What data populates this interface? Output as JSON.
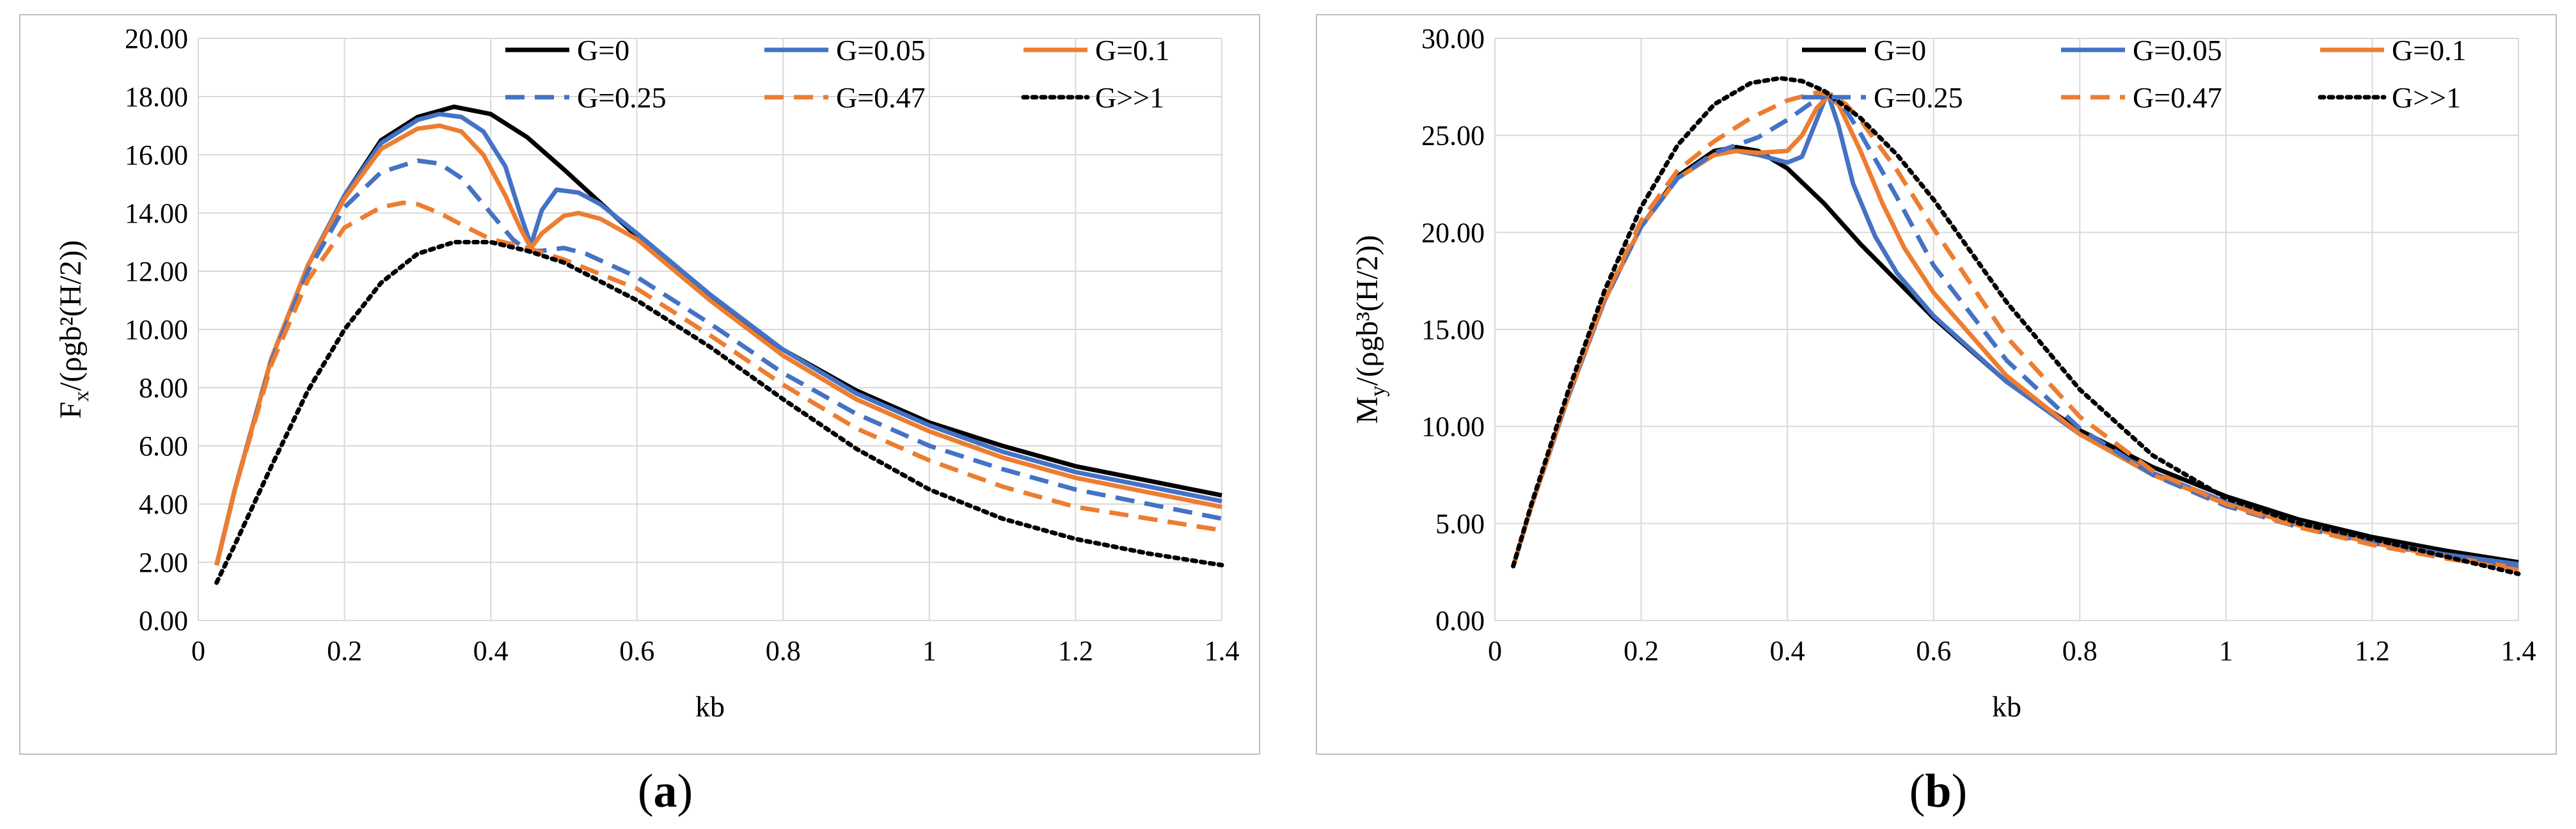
{
  "chart_data": [
    {
      "type": "line",
      "panel_label": "a",
      "xlabel": "kb",
      "ylabel_main": "F",
      "ylabel_sub": "x",
      "ylabel_rest": "/(ρgb²(H/2))",
      "xlim": [
        0,
        1.4
      ],
      "ylim": [
        0,
        20
      ],
      "xticks": [
        0,
        0.2,
        0.4,
        0.6,
        0.8,
        1,
        1.2,
        1.4
      ],
      "xtick_labels": [
        "0",
        "0.2",
        "0.4",
        "0.6",
        "0.8",
        "1",
        "1.2",
        "1.4"
      ],
      "yticks": [
        0,
        2,
        4,
        6,
        8,
        10,
        12,
        14,
        16,
        18,
        20
      ],
      "ytick_labels": [
        "0.00",
        "2.00",
        "4.00",
        "6.00",
        "8.00",
        "10.00",
        "12.00",
        "14.00",
        "16.00",
        "18.00",
        "20.00"
      ],
      "grid": true,
      "legend_position": "top-right",
      "series": [
        {
          "name": "G=0",
          "color": "#000000",
          "style": "solid",
          "x": [
            0.025,
            0.05,
            0.1,
            0.15,
            0.2,
            0.25,
            0.3,
            0.35,
            0.4,
            0.45,
            0.5,
            0.6,
            0.7,
            0.8,
            0.9,
            1.0,
            1.1,
            1.2,
            1.3,
            1.4
          ],
          "y": [
            1.9,
            4.5,
            9.0,
            12.2,
            14.6,
            16.5,
            17.3,
            17.65,
            17.4,
            16.6,
            15.5,
            13.2,
            11.1,
            9.3,
            7.9,
            6.8,
            6.0,
            5.3,
            4.8,
            4.3
          ]
        },
        {
          "name": "G=0.05",
          "color": "#4472C4",
          "style": "solid",
          "x": [
            0.025,
            0.05,
            0.1,
            0.15,
            0.2,
            0.25,
            0.3,
            0.33,
            0.36,
            0.39,
            0.42,
            0.44,
            0.455,
            0.47,
            0.49,
            0.52,
            0.55,
            0.6,
            0.7,
            0.8,
            0.9,
            1.0,
            1.1,
            1.2,
            1.3,
            1.4
          ],
          "y": [
            1.9,
            4.5,
            9.0,
            12.2,
            14.6,
            16.4,
            17.2,
            17.4,
            17.3,
            16.8,
            15.6,
            14.0,
            12.9,
            14.1,
            14.8,
            14.7,
            14.3,
            13.3,
            11.2,
            9.3,
            7.8,
            6.7,
            5.8,
            5.1,
            4.6,
            4.1
          ]
        },
        {
          "name": "G=0.1",
          "color": "#ED7D31",
          "style": "solid",
          "x": [
            0.025,
            0.05,
            0.1,
            0.15,
            0.2,
            0.25,
            0.3,
            0.33,
            0.36,
            0.39,
            0.42,
            0.44,
            0.455,
            0.47,
            0.5,
            0.52,
            0.55,
            0.6,
            0.7,
            0.8,
            0.9,
            1.0,
            1.1,
            1.2,
            1.3,
            1.4
          ],
          "y": [
            1.9,
            4.5,
            9.0,
            12.2,
            14.5,
            16.2,
            16.9,
            17.0,
            16.8,
            16.0,
            14.6,
            13.5,
            12.8,
            13.3,
            13.9,
            14.0,
            13.8,
            13.1,
            11.0,
            9.1,
            7.6,
            6.5,
            5.6,
            4.9,
            4.4,
            3.9
          ]
        },
        {
          "name": "G=0.25",
          "color": "#4472C4",
          "style": "dashed",
          "x": [
            0.025,
            0.05,
            0.1,
            0.15,
            0.2,
            0.25,
            0.3,
            0.33,
            0.36,
            0.4,
            0.43,
            0.45,
            0.47,
            0.5,
            0.53,
            0.6,
            0.7,
            0.8,
            0.9,
            1.0,
            1.1,
            1.2,
            1.3,
            1.4
          ],
          "y": [
            1.9,
            4.5,
            8.9,
            12.0,
            14.2,
            15.4,
            15.8,
            15.7,
            15.2,
            14.0,
            13.1,
            12.7,
            12.7,
            12.8,
            12.6,
            11.8,
            10.2,
            8.5,
            7.1,
            6.0,
            5.2,
            4.5,
            4.0,
            3.5
          ]
        },
        {
          "name": "G=0.47",
          "color": "#ED7D31",
          "style": "dashed",
          "x": [
            0.025,
            0.05,
            0.1,
            0.15,
            0.2,
            0.25,
            0.28,
            0.3,
            0.33,
            0.36,
            0.4,
            0.45,
            0.5,
            0.6,
            0.7,
            0.8,
            0.9,
            1.0,
            1.1,
            1.2,
            1.3,
            1.4
          ],
          "y": [
            1.9,
            4.5,
            8.8,
            11.7,
            13.5,
            14.2,
            14.35,
            14.3,
            14.0,
            13.6,
            13.1,
            12.8,
            12.4,
            11.4,
            9.8,
            8.1,
            6.6,
            5.5,
            4.6,
            3.9,
            3.5,
            3.1
          ]
        },
        {
          "name": "G>>1",
          "color": "#000000",
          "style": "dotted",
          "x": [
            0.025,
            0.05,
            0.1,
            0.15,
            0.2,
            0.25,
            0.3,
            0.35,
            0.4,
            0.45,
            0.5,
            0.6,
            0.7,
            0.8,
            0.9,
            1.0,
            1.1,
            1.2,
            1.3,
            1.4
          ],
          "y": [
            1.3,
            2.6,
            5.3,
            7.9,
            10.0,
            11.6,
            12.6,
            13.0,
            13.0,
            12.7,
            12.3,
            11.0,
            9.4,
            7.6,
            5.9,
            4.5,
            3.5,
            2.8,
            2.3,
            1.9
          ]
        }
      ]
    },
    {
      "type": "line",
      "panel_label": "b",
      "xlabel": "kb",
      "ylabel_main": "M",
      "ylabel_sub": "y",
      "ylabel_rest": "/(ρgb³(H/2))",
      "xlim": [
        0,
        1.4
      ],
      "ylim": [
        0,
        30
      ],
      "xticks": [
        0,
        0.2,
        0.4,
        0.6,
        0.8,
        1,
        1.2,
        1.4
      ],
      "xtick_labels": [
        "0",
        "0.2",
        "0.4",
        "0.6",
        "0.8",
        "1",
        "1.2",
        "1.4"
      ],
      "yticks": [
        0,
        5,
        10,
        15,
        20,
        25,
        30
      ],
      "ytick_labels": [
        "0.00",
        "5.00",
        "10.00",
        "15.00",
        "20.00",
        "25.00",
        "30.00"
      ],
      "grid": true,
      "legend_position": "top-right",
      "series": [
        {
          "name": "G=0",
          "color": "#000000",
          "style": "solid",
          "x": [
            0.025,
            0.05,
            0.1,
            0.15,
            0.2,
            0.25,
            0.3,
            0.33,
            0.36,
            0.4,
            0.45,
            0.5,
            0.6,
            0.7,
            0.8,
            0.9,
            1.0,
            1.1,
            1.2,
            1.3,
            1.4
          ],
          "y": [
            2.8,
            5.9,
            11.5,
            16.5,
            20.3,
            22.9,
            24.2,
            24.4,
            24.2,
            23.3,
            21.5,
            19.4,
            15.6,
            12.3,
            9.8,
            7.9,
            6.4,
            5.2,
            4.3,
            3.6,
            3.0
          ]
        },
        {
          "name": "G=0.05",
          "color": "#4472C4",
          "style": "solid",
          "x": [
            0.025,
            0.05,
            0.1,
            0.15,
            0.2,
            0.25,
            0.3,
            0.33,
            0.36,
            0.4,
            0.42,
            0.44,
            0.455,
            0.47,
            0.49,
            0.52,
            0.55,
            0.6,
            0.7,
            0.8,
            0.9,
            1.0,
            1.1,
            1.2,
            1.3,
            1.4
          ],
          "y": [
            2.8,
            5.9,
            11.5,
            16.5,
            20.3,
            22.8,
            24.0,
            24.2,
            24.0,
            23.6,
            23.9,
            25.8,
            27.2,
            25.5,
            22.5,
            19.8,
            17.9,
            15.7,
            12.3,
            9.6,
            7.6,
            6.1,
            5.0,
            4.1,
            3.4,
            2.9
          ]
        },
        {
          "name": "G=0.1",
          "color": "#ED7D31",
          "style": "solid",
          "x": [
            0.025,
            0.05,
            0.1,
            0.15,
            0.2,
            0.25,
            0.3,
            0.33,
            0.36,
            0.4,
            0.42,
            0.44,
            0.455,
            0.47,
            0.5,
            0.53,
            0.56,
            0.6,
            0.7,
            0.8,
            0.9,
            1.0,
            1.1,
            1.2,
            1.3,
            1.4
          ],
          "y": [
            2.8,
            5.9,
            11.5,
            16.5,
            20.3,
            22.8,
            24.0,
            24.2,
            24.1,
            24.2,
            25.0,
            26.4,
            27.0,
            26.6,
            24.2,
            21.5,
            19.2,
            16.9,
            12.6,
            9.6,
            7.5,
            6.0,
            4.9,
            4.0,
            3.3,
            2.7
          ]
        },
        {
          "name": "G=0.25",
          "color": "#4472C4",
          "style": "dashed",
          "x": [
            0.025,
            0.05,
            0.1,
            0.15,
            0.2,
            0.25,
            0.3,
            0.33,
            0.36,
            0.4,
            0.43,
            0.455,
            0.48,
            0.5,
            0.55,
            0.6,
            0.7,
            0.8,
            0.9,
            1.0,
            1.1,
            1.2,
            1.3,
            1.4
          ],
          "y": [
            2.8,
            5.9,
            11.5,
            16.5,
            20.3,
            22.8,
            24.1,
            24.5,
            24.9,
            25.8,
            26.6,
            27.1,
            26.3,
            25.1,
            21.8,
            18.3,
            13.4,
            9.9,
            7.5,
            5.9,
            4.8,
            4.0,
            3.3,
            2.7
          ]
        },
        {
          "name": "G=0.47",
          "color": "#ED7D31",
          "style": "dashed",
          "x": [
            0.025,
            0.05,
            0.1,
            0.15,
            0.2,
            0.25,
            0.3,
            0.35,
            0.4,
            0.44,
            0.46,
            0.48,
            0.5,
            0.55,
            0.6,
            0.7,
            0.8,
            0.9,
            1.0,
            1.1,
            1.2,
            1.3,
            1.4
          ],
          "y": [
            2.8,
            5.9,
            11.6,
            16.6,
            20.6,
            23.2,
            24.7,
            25.9,
            26.8,
            27.2,
            27.1,
            26.6,
            25.8,
            23.2,
            20.2,
            14.6,
            10.5,
            7.7,
            6.0,
            4.8,
            3.9,
            3.2,
            2.6
          ]
        },
        {
          "name": "G>>1",
          "color": "#000000",
          "style": "dotted",
          "x": [
            0.025,
            0.05,
            0.1,
            0.15,
            0.2,
            0.25,
            0.3,
            0.35,
            0.39,
            0.42,
            0.45,
            0.5,
            0.55,
            0.6,
            0.7,
            0.8,
            0.9,
            1.0,
            1.1,
            1.2,
            1.3,
            1.4
          ],
          "y": [
            2.8,
            6.0,
            11.8,
            17.0,
            21.3,
            24.5,
            26.6,
            27.7,
            27.95,
            27.8,
            27.3,
            25.9,
            24.0,
            21.7,
            16.4,
            11.9,
            8.5,
            6.3,
            5.0,
            4.2,
            3.3,
            2.4
          ]
        }
      ]
    }
  ]
}
